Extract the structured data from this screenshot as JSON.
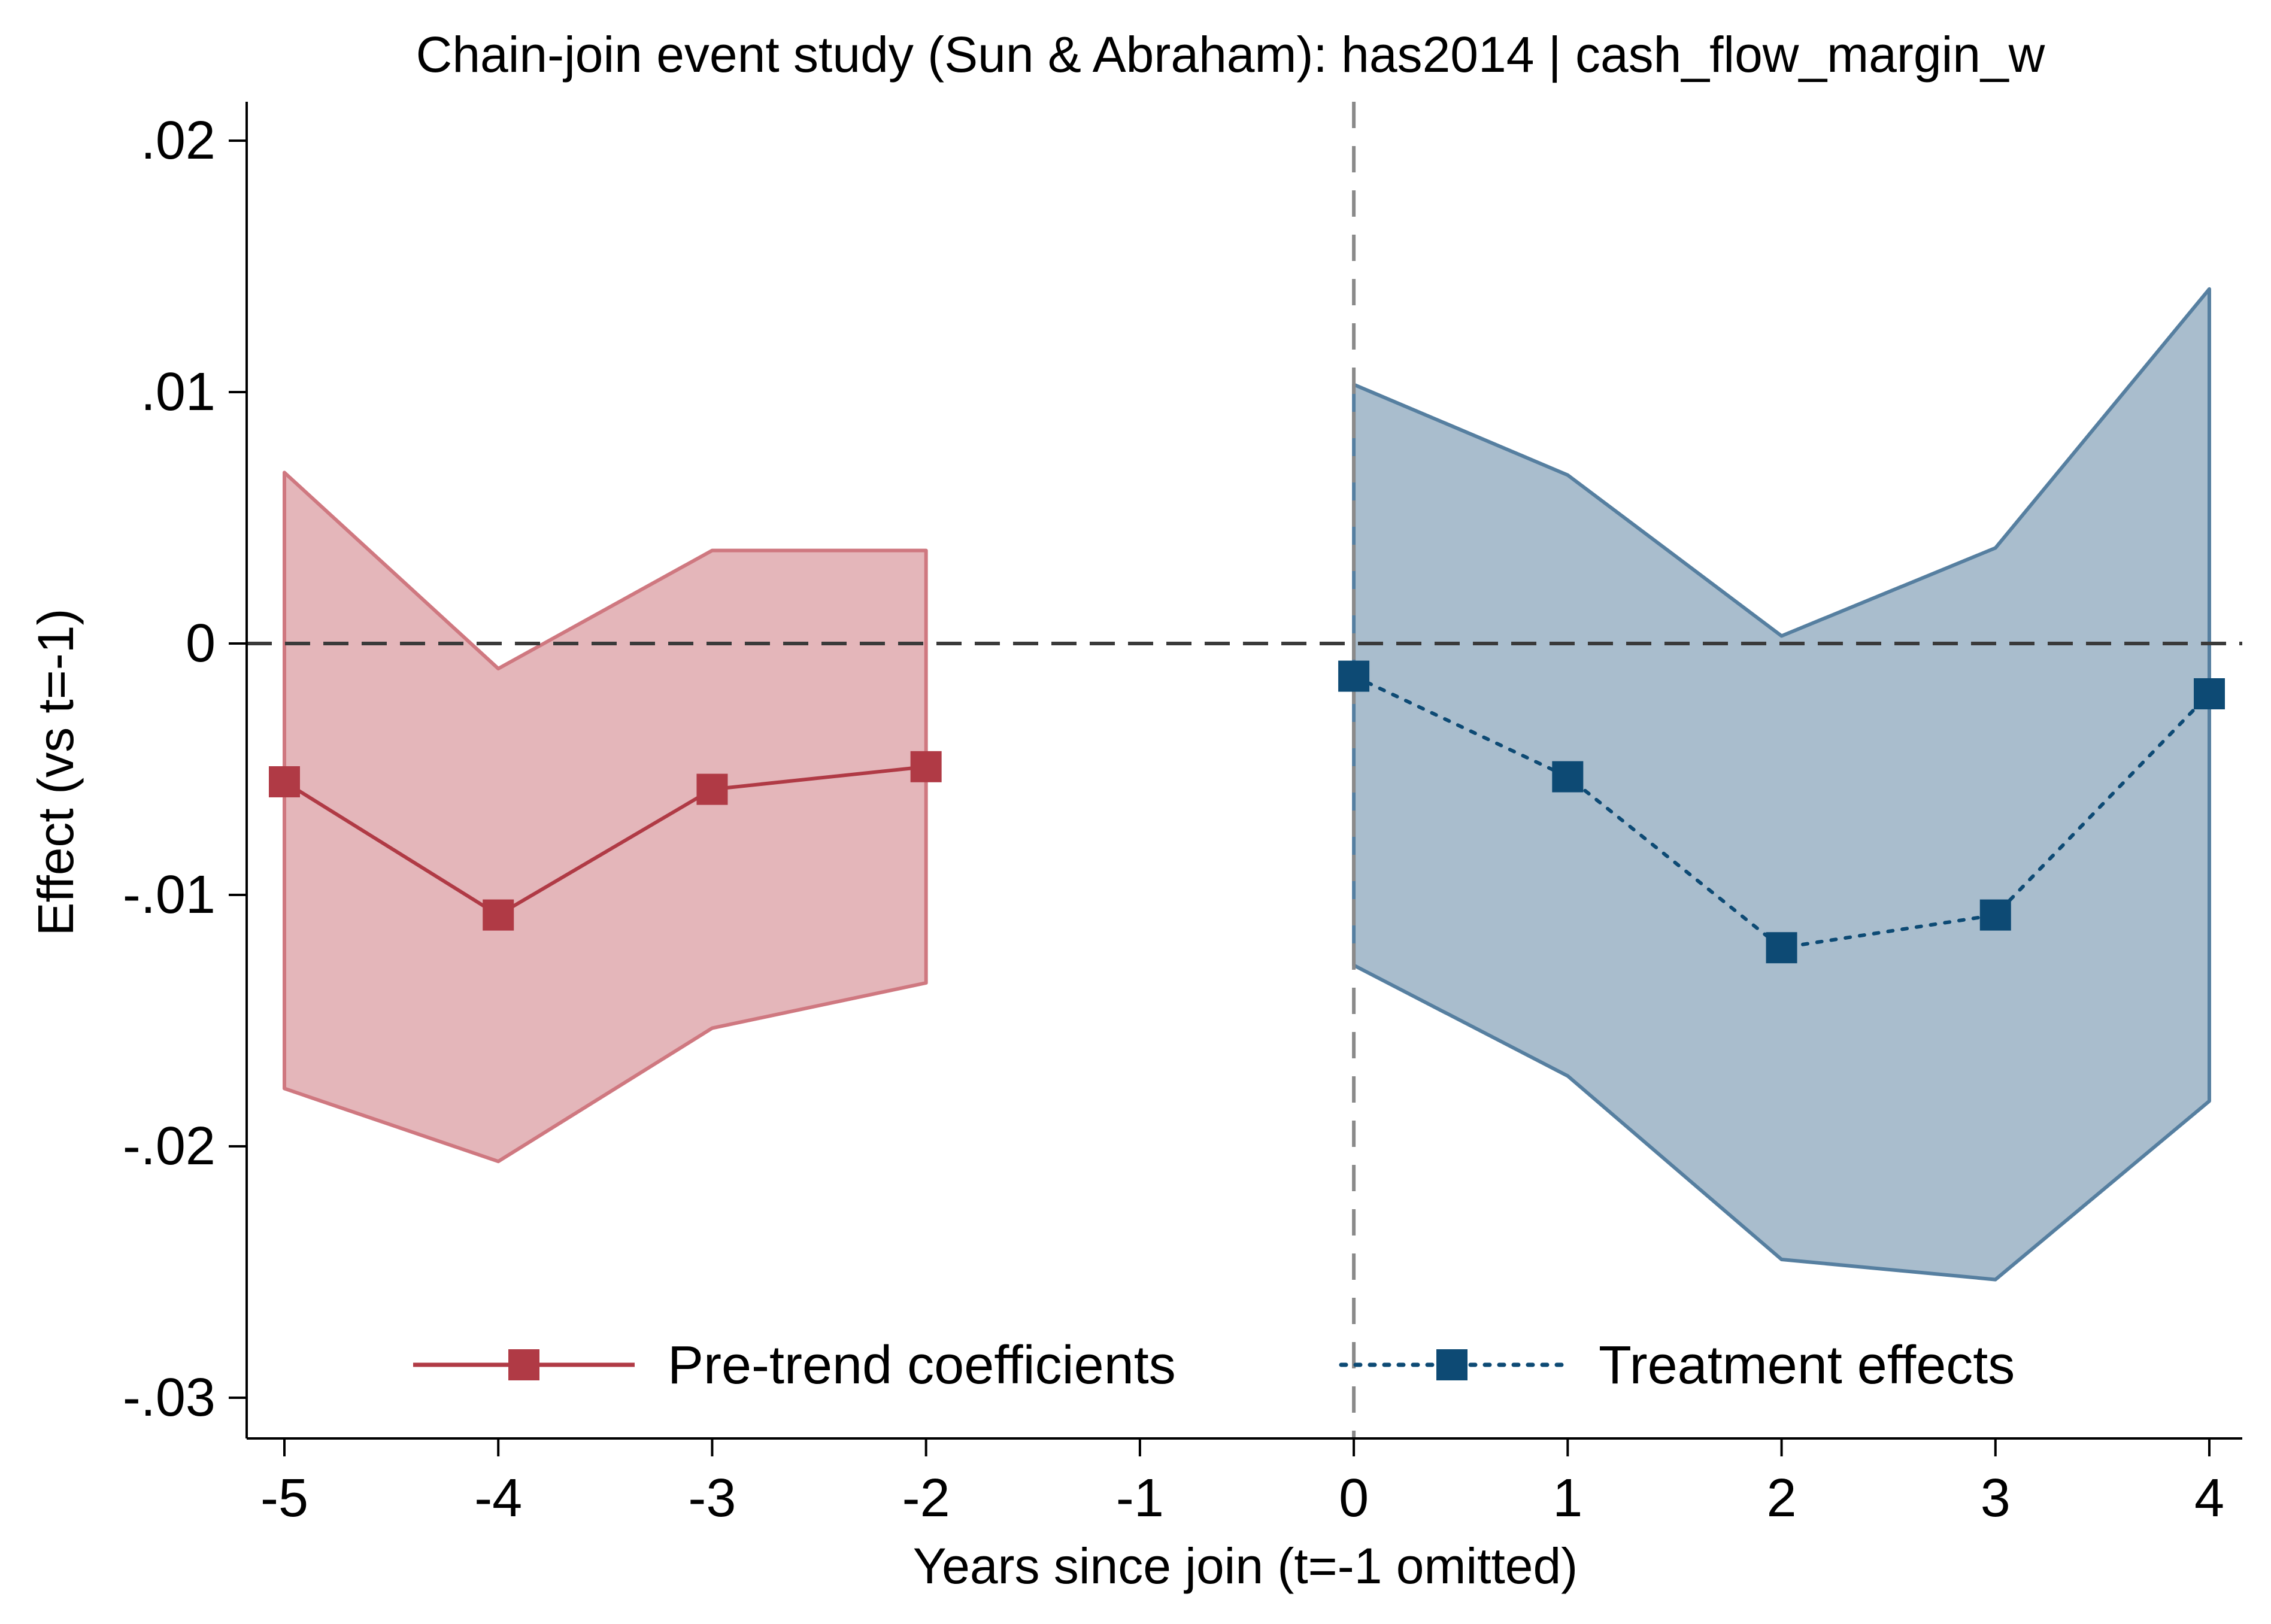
{
  "chart_data": {
    "type": "line",
    "title": "Chain-join event study (Sun & Abraham): has2014 | cash_flow_margin_w",
    "xlabel": "Years since join (t=-1 omitted)",
    "ylabel": "Effect (vs t=-1)",
    "xlim": [
      -5.18,
      4.18
    ],
    "ylim": [
      -0.0315,
      0.0215
    ],
    "x_ticks": [
      {
        "value": -5,
        "label": "-5"
      },
      {
        "value": -4,
        "label": "-4"
      },
      {
        "value": -3,
        "label": "-3"
      },
      {
        "value": -2,
        "label": "-2"
      },
      {
        "value": -1,
        "label": "-1"
      },
      {
        "value": 0,
        "label": "0"
      },
      {
        "value": 1,
        "label": "1"
      },
      {
        "value": 2,
        "label": "2"
      },
      {
        "value": 3,
        "label": "3"
      },
      {
        "value": 4,
        "label": "4"
      }
    ],
    "y_ticks": [
      {
        "value": 0.02,
        "label": ".02"
      },
      {
        "value": 0.01,
        "label": ".01"
      },
      {
        "value": 0,
        "label": "0"
      },
      {
        "value": -0.01,
        "label": "-.01"
      },
      {
        "value": -0.02,
        "label": "-.02"
      },
      {
        "value": -0.03,
        "label": "-.03"
      }
    ],
    "reference_lines": {
      "horizontal_at": 0,
      "vertical_at": 0
    },
    "series": [
      {
        "name": "Pre-trend coefficients",
        "color": "#b03a45",
        "ci_fill": "#e4b6ba",
        "ci_stroke": "#cf7880",
        "line_style": "solid",
        "marker": "square",
        "points": [
          {
            "x": -5,
            "y": -0.0055,
            "ci_low": -0.0177,
            "ci_high": 0.0068
          },
          {
            "x": -4,
            "y": -0.0108,
            "ci_low": -0.0206,
            "ci_high": -0.001
          },
          {
            "x": -3,
            "y": -0.0058,
            "ci_low": -0.0153,
            "ci_high": 0.0037
          },
          {
            "x": -2,
            "y": -0.0049,
            "ci_low": -0.0135,
            "ci_high": 0.0037
          }
        ]
      },
      {
        "name": "Treatment effects",
        "color": "#0d4a74",
        "ci_fill": "#a9bdcd",
        "ci_stroke": "#567fa0",
        "line_style": "dotted",
        "marker": "square",
        "points": [
          {
            "x": 0,
            "y": -0.0013,
            "ci_low": -0.0128,
            "ci_high": 0.0103
          },
          {
            "x": 1,
            "y": -0.0053,
            "ci_low": -0.0172,
            "ci_high": 0.0067
          },
          {
            "x": 2,
            "y": -0.0121,
            "ci_low": -0.0245,
            "ci_high": 0.0003
          },
          {
            "x": 3,
            "y": -0.0108,
            "ci_low": -0.0253,
            "ci_high": 0.0038
          },
          {
            "x": 4,
            "y": -0.002,
            "ci_low": -0.0182,
            "ci_high": 0.0141
          }
        ]
      }
    ],
    "legend": {
      "placement": "bottom-inside",
      "entries": [
        "Pre-trend coefficients",
        "Treatment effects"
      ]
    }
  }
}
